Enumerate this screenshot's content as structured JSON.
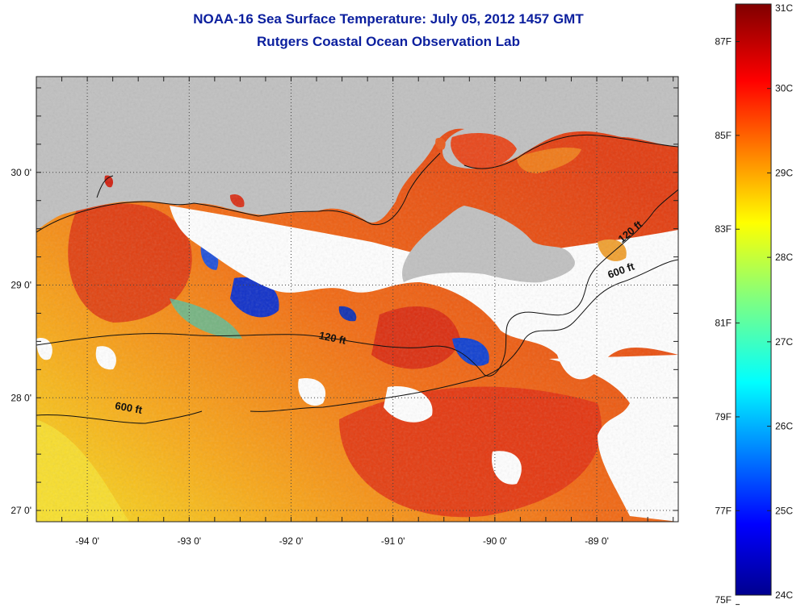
{
  "title": {
    "line1": "NOAA-16 Sea Surface Temperature:  July 05, 2012 1457 GMT",
    "line2": "Rutgers Coastal Ocean Observation Lab"
  },
  "map": {
    "lon_range": [
      -94.5,
      -88.2
    ],
    "lat_range": [
      26.9,
      30.85
    ],
    "x_ticks": [
      {
        "value": -94,
        "label": "-94 0'"
      },
      {
        "value": -93,
        "label": "-93 0'"
      },
      {
        "value": -92,
        "label": "-92 0'"
      },
      {
        "value": -91,
        "label": "-91 0'"
      },
      {
        "value": -90,
        "label": "-90 0'"
      },
      {
        "value": -89,
        "label": "-89 0'"
      }
    ],
    "y_ticks": [
      {
        "value": 30,
        "label": "30 0'"
      },
      {
        "value": 29,
        "label": "29 0'"
      },
      {
        "value": 28,
        "label": "28 0'"
      },
      {
        "value": 27,
        "label": "27 0'"
      }
    ],
    "grid": "dotted",
    "contour_labels": [
      {
        "text": "120 ft",
        "lon": -91.6,
        "lat": 28.5,
        "angle": 12
      },
      {
        "text": "600 ft",
        "lon": -93.6,
        "lat": 27.88,
        "angle": 10
      },
      {
        "text": "120 ft",
        "lon": -88.65,
        "lat": 29.45,
        "angle": -40
      },
      {
        "text": "600 ft",
        "lon": -88.75,
        "lat": 29.1,
        "angle": -20
      }
    ],
    "colors": {
      "land": "#c0c0c0",
      "cloud": "#ffffff"
    }
  },
  "colorbar": {
    "min_c": 24,
    "max_c": 31,
    "celsius_labels": [
      {
        "value": 31,
        "label": "31C"
      },
      {
        "value": 30,
        "label": "30C"
      },
      {
        "value": 29,
        "label": "29C"
      },
      {
        "value": 28,
        "label": "28C"
      },
      {
        "value": 27,
        "label": "27C"
      },
      {
        "value": 26,
        "label": "26C"
      },
      {
        "value": 25,
        "label": "25C"
      },
      {
        "value": 24,
        "label": "24C"
      }
    ],
    "fahrenheit_labels": [
      {
        "value": 87,
        "label": "87F"
      },
      {
        "value": 85,
        "label": "85F"
      },
      {
        "value": 83,
        "label": "83F"
      },
      {
        "value": 81,
        "label": "81F"
      },
      {
        "value": 79,
        "label": "79F"
      },
      {
        "value": 77,
        "label": "77F"
      },
      {
        "value": 75,
        "label": "75F"
      }
    ]
  }
}
